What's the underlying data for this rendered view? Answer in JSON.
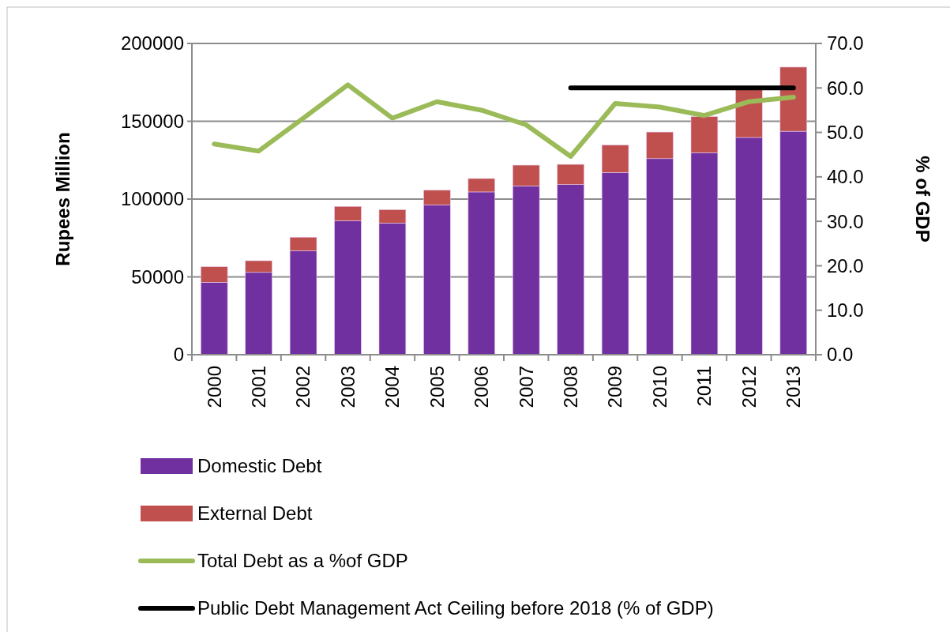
{
  "chart_data": {
    "type": "bar",
    "stacked": true,
    "ylabel": "Rupees Million",
    "y2label": "% of GDP",
    "categories": [
      "2000",
      "2001",
      "2002",
      "2003",
      "2004",
      "2005",
      "2006",
      "2007",
      "2008",
      "2009",
      "2010",
      "2011",
      "2012",
      "2013"
    ],
    "series": [
      {
        "name": "Domestic Debt",
        "color": "#7030a0",
        "values": [
          46500,
          52900,
          66800,
          86100,
          84600,
          96300,
          104600,
          108500,
          109300,
          117100,
          126000,
          129800,
          139600,
          143600
        ]
      },
      {
        "name": "External Debt",
        "color": "#c0504d",
        "values": [
          10000,
          7500,
          8700,
          9200,
          8600,
          9400,
          8600,
          13300,
          13000,
          17600,
          17100,
          23200,
          31400,
          41200
        ]
      },
      {
        "name": "Total Debt as a %of  GDP",
        "type": "line",
        "axis": "y2",
        "color": "#9bbb59",
        "values": [
          47.4,
          45.8,
          53.2,
          60.7,
          53.2,
          56.9,
          55.0,
          51.7,
          44.6,
          56.5,
          55.7,
          53.8,
          56.9,
          57.9
        ]
      },
      {
        "name": "Public Debt Management Act Ceiling before 2018 (% of GDP)",
        "type": "line",
        "axis": "y2",
        "color": "#000000",
        "values": [
          null,
          null,
          null,
          null,
          null,
          null,
          null,
          null,
          60,
          60,
          60,
          60,
          60,
          60
        ]
      }
    ],
    "ylim": [
      0,
      200000
    ],
    "yticks": [
      0,
      50000,
      100000,
      150000,
      200000
    ],
    "y2lim": [
      0,
      70
    ],
    "y2ticks": [
      {
        "value": 0,
        "label": "0.0"
      },
      {
        "value": 10,
        "label": "10.0"
      },
      {
        "value": 20,
        "label": "20.0"
      },
      {
        "value": 30,
        "label": "30.0"
      },
      {
        "value": 40,
        "label": "40.0"
      },
      {
        "value": 50,
        "label": "50.0"
      },
      {
        "value": 60,
        "label": "60.0"
      },
      {
        "value": 70,
        "label": "70.0"
      }
    ],
    "grid": "y",
    "legend": "bottom"
  }
}
